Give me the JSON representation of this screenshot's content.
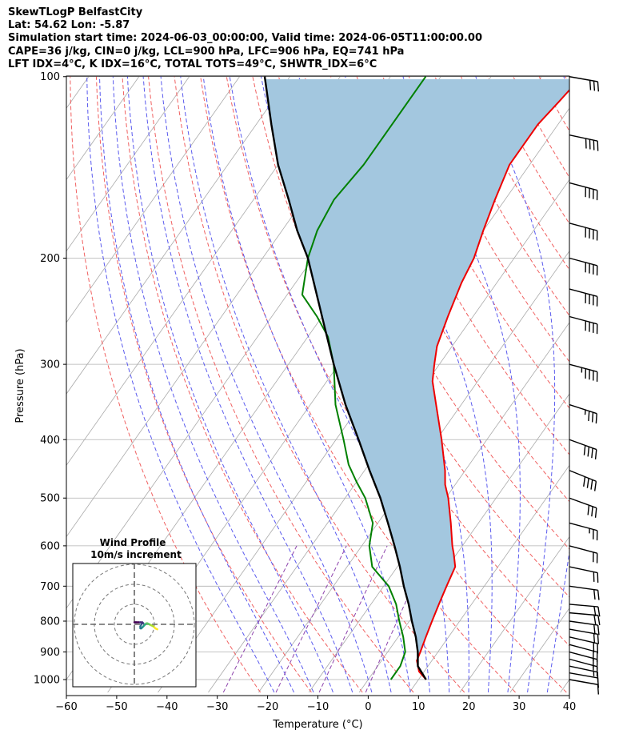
{
  "header": {
    "line1": "SkewTLogP BelfastCity",
    "line2": "Lat: 54.62   Lon: -5.87",
    "line3": "Simulation start time: 2024-06-03_00:00:00, Valid time: 2024-06-05T11:00:00.00",
    "line4": "CAPE=36 j/kg, CIN=0 j/kg, LCL=900 hPa, LFC=906 hPa, EQ=741 hPa",
    "line5": "LFT IDX=4°C, K IDX=16°C, TOTAL TOTS=49°C, SHWTR_IDX=6°C"
  },
  "colors": {
    "temperature": "#ee0000",
    "dewpoint": "#008000",
    "parcel": "#000000",
    "cape_fill": "#a3c7df",
    "dry_adiabat": "#f06060",
    "moist_adiabat": "#5a5aee",
    "mixing_ratio": "#8e44ad",
    "isotherm": "#aaaaaa",
    "grid": "#b0b0b0"
  },
  "chart_data": [
    {
      "type": "line",
      "name": "skewt",
      "xlabel": "Temperature (°C)",
      "ylabel": "Pressure (hPa)",
      "xlim": [
        -60,
        40
      ],
      "ylim": [
        1050,
        100
      ],
      "xticks": [
        -60,
        -50,
        -40,
        -30,
        -20,
        -10,
        0,
        10,
        20,
        30,
        40
      ],
      "yticks": [
        100,
        200,
        300,
        400,
        500,
        600,
        700,
        800,
        900,
        1000
      ],
      "series": [
        {
          "name": "Temperature",
          "key": "temperature",
          "points": [
            [
              1000,
              11.5
            ],
            [
              970,
              9
            ],
            [
              930,
              7
            ],
            [
              900,
              6.5
            ],
            [
              850,
              5.5
            ],
            [
              800,
              4.5
            ],
            [
              750,
              3.5
            ],
            [
              700,
              2.5
            ],
            [
              650,
              1.5
            ],
            [
              620,
              -0.5
            ],
            [
              600,
              -2
            ],
            [
              550,
              -5.5
            ],
            [
              500,
              -9.5
            ],
            [
              475,
              -12
            ],
            [
              450,
              -14
            ],
            [
              400,
              -19
            ],
            [
              350,
              -25
            ],
            [
              320,
              -29
            ],
            [
              300,
              -31
            ],
            [
              280,
              -33
            ],
            [
              250,
              -35
            ],
            [
              220,
              -37
            ],
            [
              200,
              -38
            ],
            [
              180,
              -40
            ],
            [
              160,
              -42
            ],
            [
              140,
              -44
            ],
            [
              120,
              -44
            ],
            [
              110,
              -43
            ],
            [
              100,
              -42
            ]
          ]
        },
        {
          "name": "Dewpoint",
          "key": "dewpoint",
          "points": [
            [
              1000,
              4.5
            ],
            [
              950,
              4.5
            ],
            [
              900,
              3.5
            ],
            [
              850,
              1
            ],
            [
              800,
              -2
            ],
            [
              750,
              -5
            ],
            [
              700,
              -9
            ],
            [
              650,
              -15
            ],
            [
              600,
              -18.5
            ],
            [
              550,
              -21
            ],
            [
              500,
              -26
            ],
            [
              470,
              -30
            ],
            [
              440,
              -34
            ],
            [
              400,
              -38.5
            ],
            [
              350,
              -45
            ],
            [
              300,
              -51
            ],
            [
              270,
              -56
            ],
            [
              250,
              -61
            ],
            [
              230,
              -67
            ],
            [
              200,
              -71
            ],
            [
              180,
              -73
            ],
            [
              160,
              -74
            ],
            [
              140,
              -73
            ],
            [
              120,
              -73
            ],
            [
              100,
              -73
            ]
          ]
        },
        {
          "name": "Parcel",
          "key": "parcel",
          "points": [
            [
              1000,
              11.5
            ],
            [
              950,
              8
            ],
            [
              900,
              6
            ],
            [
              850,
              3.5
            ],
            [
              800,
              0.5
            ],
            [
              750,
              -2.5
            ],
            [
              700,
              -6
            ],
            [
              650,
              -9.5
            ],
            [
              600,
              -13.5
            ],
            [
              550,
              -18
            ],
            [
              500,
              -23
            ],
            [
              450,
              -29
            ],
            [
              400,
              -35.5
            ],
            [
              350,
              -43
            ],
            [
              300,
              -51
            ],
            [
              250,
              -60
            ],
            [
              200,
              -71
            ],
            [
              180,
              -77
            ],
            [
              160,
              -83
            ],
            [
              140,
              -90
            ],
            [
              120,
              -97
            ],
            [
              100,
              -105
            ]
          ]
        }
      ],
      "cape_region": {
        "from_pressure": 906,
        "to_pressure": 100,
        "label": "CAPE"
      },
      "wind_barbs": {
        "pressures": [
          1000,
          975,
          950,
          925,
          900,
          875,
          850,
          825,
          800,
          775,
          750,
          700,
          650,
          600,
          550,
          500,
          450,
          400,
          350,
          300,
          250,
          225,
          200,
          175,
          150,
          125,
          100
        ],
        "speed_kt": [
          10,
          12,
          15,
          18,
          20,
          20,
          20,
          20,
          20,
          20,
          20,
          20,
          20,
          20,
          25,
          30,
          40,
          40,
          35,
          45,
          40,
          40,
          40,
          40,
          40,
          40,
          30
        ],
        "direction_deg": [
          280,
          280,
          282,
          285,
          285,
          285,
          283,
          280,
          278,
          275,
          275,
          278,
          282,
          285,
          285,
          290,
          292,
          290,
          288,
          285,
          285,
          285,
          285,
          285,
          285,
          282,
          280
        ]
      }
    },
    {
      "type": "scatter",
      "name": "hodograph",
      "title": "Wind Profile",
      "subtitle": "10m/s increment",
      "ring_step_ms": 10,
      "rings_ms": [
        10,
        20,
        30
      ],
      "u_ms": [
        11.5,
        10.5,
        9.5,
        8.5,
        7.5,
        6.5,
        6.0,
        5.5,
        5.0,
        4.5,
        4.0,
        3.5,
        3.0,
        3.0,
        3.5,
        4.0,
        4.5,
        4.0,
        3.0,
        2.0,
        1.0,
        0.5,
        0.0
      ],
      "v_ms": [
        -2.5,
        -2.0,
        -1.0,
        -0.5,
        0.0,
        0.5,
        0.5,
        0.0,
        -0.5,
        -1.0,
        -1.5,
        -2.0,
        -2.0,
        -1.0,
        0.0,
        0.5,
        0.5,
        1.0,
        1.0,
        1.0,
        1.0,
        1.0,
        1.0
      ]
    }
  ]
}
